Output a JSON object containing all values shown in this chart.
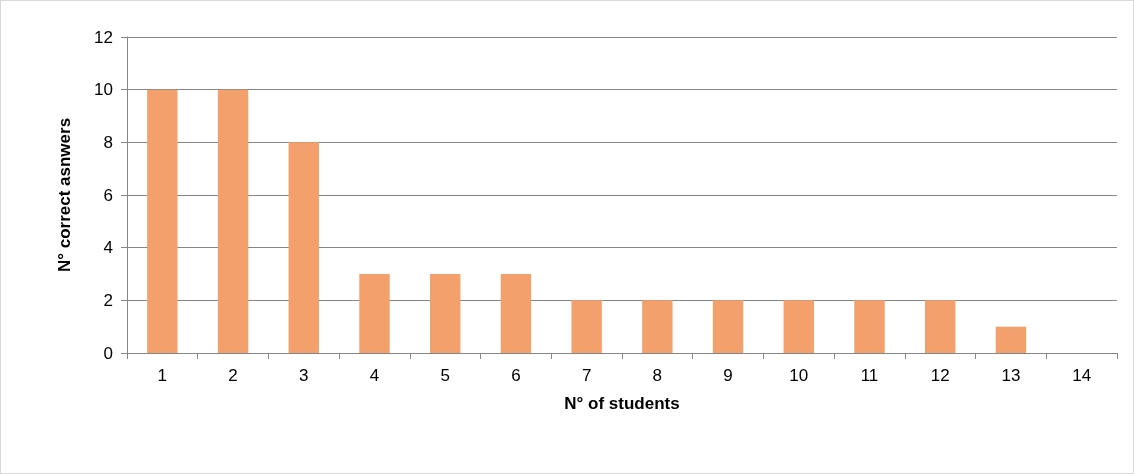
{
  "chart_data": {
    "type": "bar",
    "xlabel": "N° of students",
    "ylabel": "N° correct asnwers",
    "categories": [
      "1",
      "2",
      "3",
      "4",
      "5",
      "6",
      "7",
      "8",
      "9",
      "10",
      "11",
      "12",
      "13",
      "14"
    ],
    "values": [
      10,
      10,
      8,
      3,
      3,
      3,
      2,
      2,
      2,
      2,
      2,
      2,
      1,
      0
    ],
    "color": "#f4a06c",
    "ylim": [
      0,
      12
    ],
    "yticks": [
      0,
      2,
      4,
      6,
      8,
      10,
      12
    ],
    "grid": "y"
  }
}
